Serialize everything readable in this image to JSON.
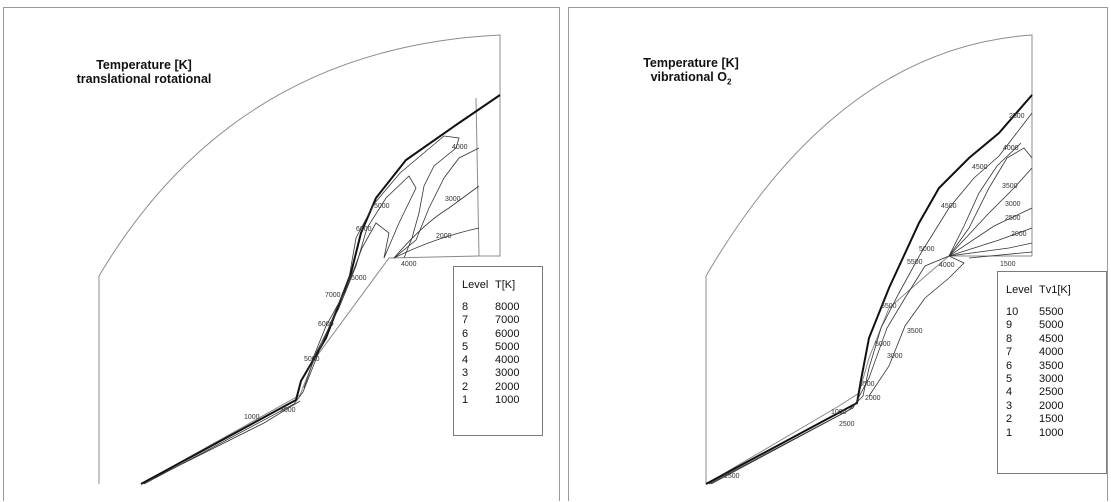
{
  "left_panel": {
    "title_line1": "Temperature [K]",
    "title_line2": "translational rotational",
    "legend": {
      "header_level": "Level",
      "header_value": "T[K]",
      "rows": [
        {
          "level": "8",
          "value": "8000"
        },
        {
          "level": "7",
          "value": "7000"
        },
        {
          "level": "6",
          "value": "6000"
        },
        {
          "level": "5",
          "value": "5000"
        },
        {
          "level": "4",
          "value": "4000"
        },
        {
          "level": "3",
          "value": "3000"
        },
        {
          "level": "2",
          "value": "2000"
        },
        {
          "level": "1",
          "value": "1000"
        }
      ]
    },
    "contour_labels": [
      "4000",
      "3000",
      "2000",
      "5000",
      "6000",
      "4000",
      "5000",
      "7000",
      "6000",
      "5000",
      "1000",
      "3000"
    ]
  },
  "right_panel": {
    "title_line1": "Temperature [K]",
    "title_line2": "vibrational O",
    "title_subscript": "2",
    "legend": {
      "header_level": "Level",
      "header_value": "Tv1[K]",
      "rows": [
        {
          "level": "10",
          "value": "5500"
        },
        {
          "level": "9",
          "value": "5000"
        },
        {
          "level": "8",
          "value": "4500"
        },
        {
          "level": "7",
          "value": "4000"
        },
        {
          "level": "6",
          "value": "3500"
        },
        {
          "level": "5",
          "value": "3000"
        },
        {
          "level": "4",
          "value": "2500"
        },
        {
          "level": "3",
          "value": "2000"
        },
        {
          "level": "2",
          "value": "1500"
        },
        {
          "level": "1",
          "value": "1000"
        }
      ]
    },
    "contour_labels": [
      "2500",
      "4000",
      "4500",
      "3500",
      "3000",
      "2500",
      "2000",
      "1500",
      "5000",
      "5500",
      "4500",
      "4000",
      "5500",
      "5000",
      "3500",
      "3000",
      "5500",
      "2000",
      "1000",
      "2500",
      "1500"
    ]
  }
}
